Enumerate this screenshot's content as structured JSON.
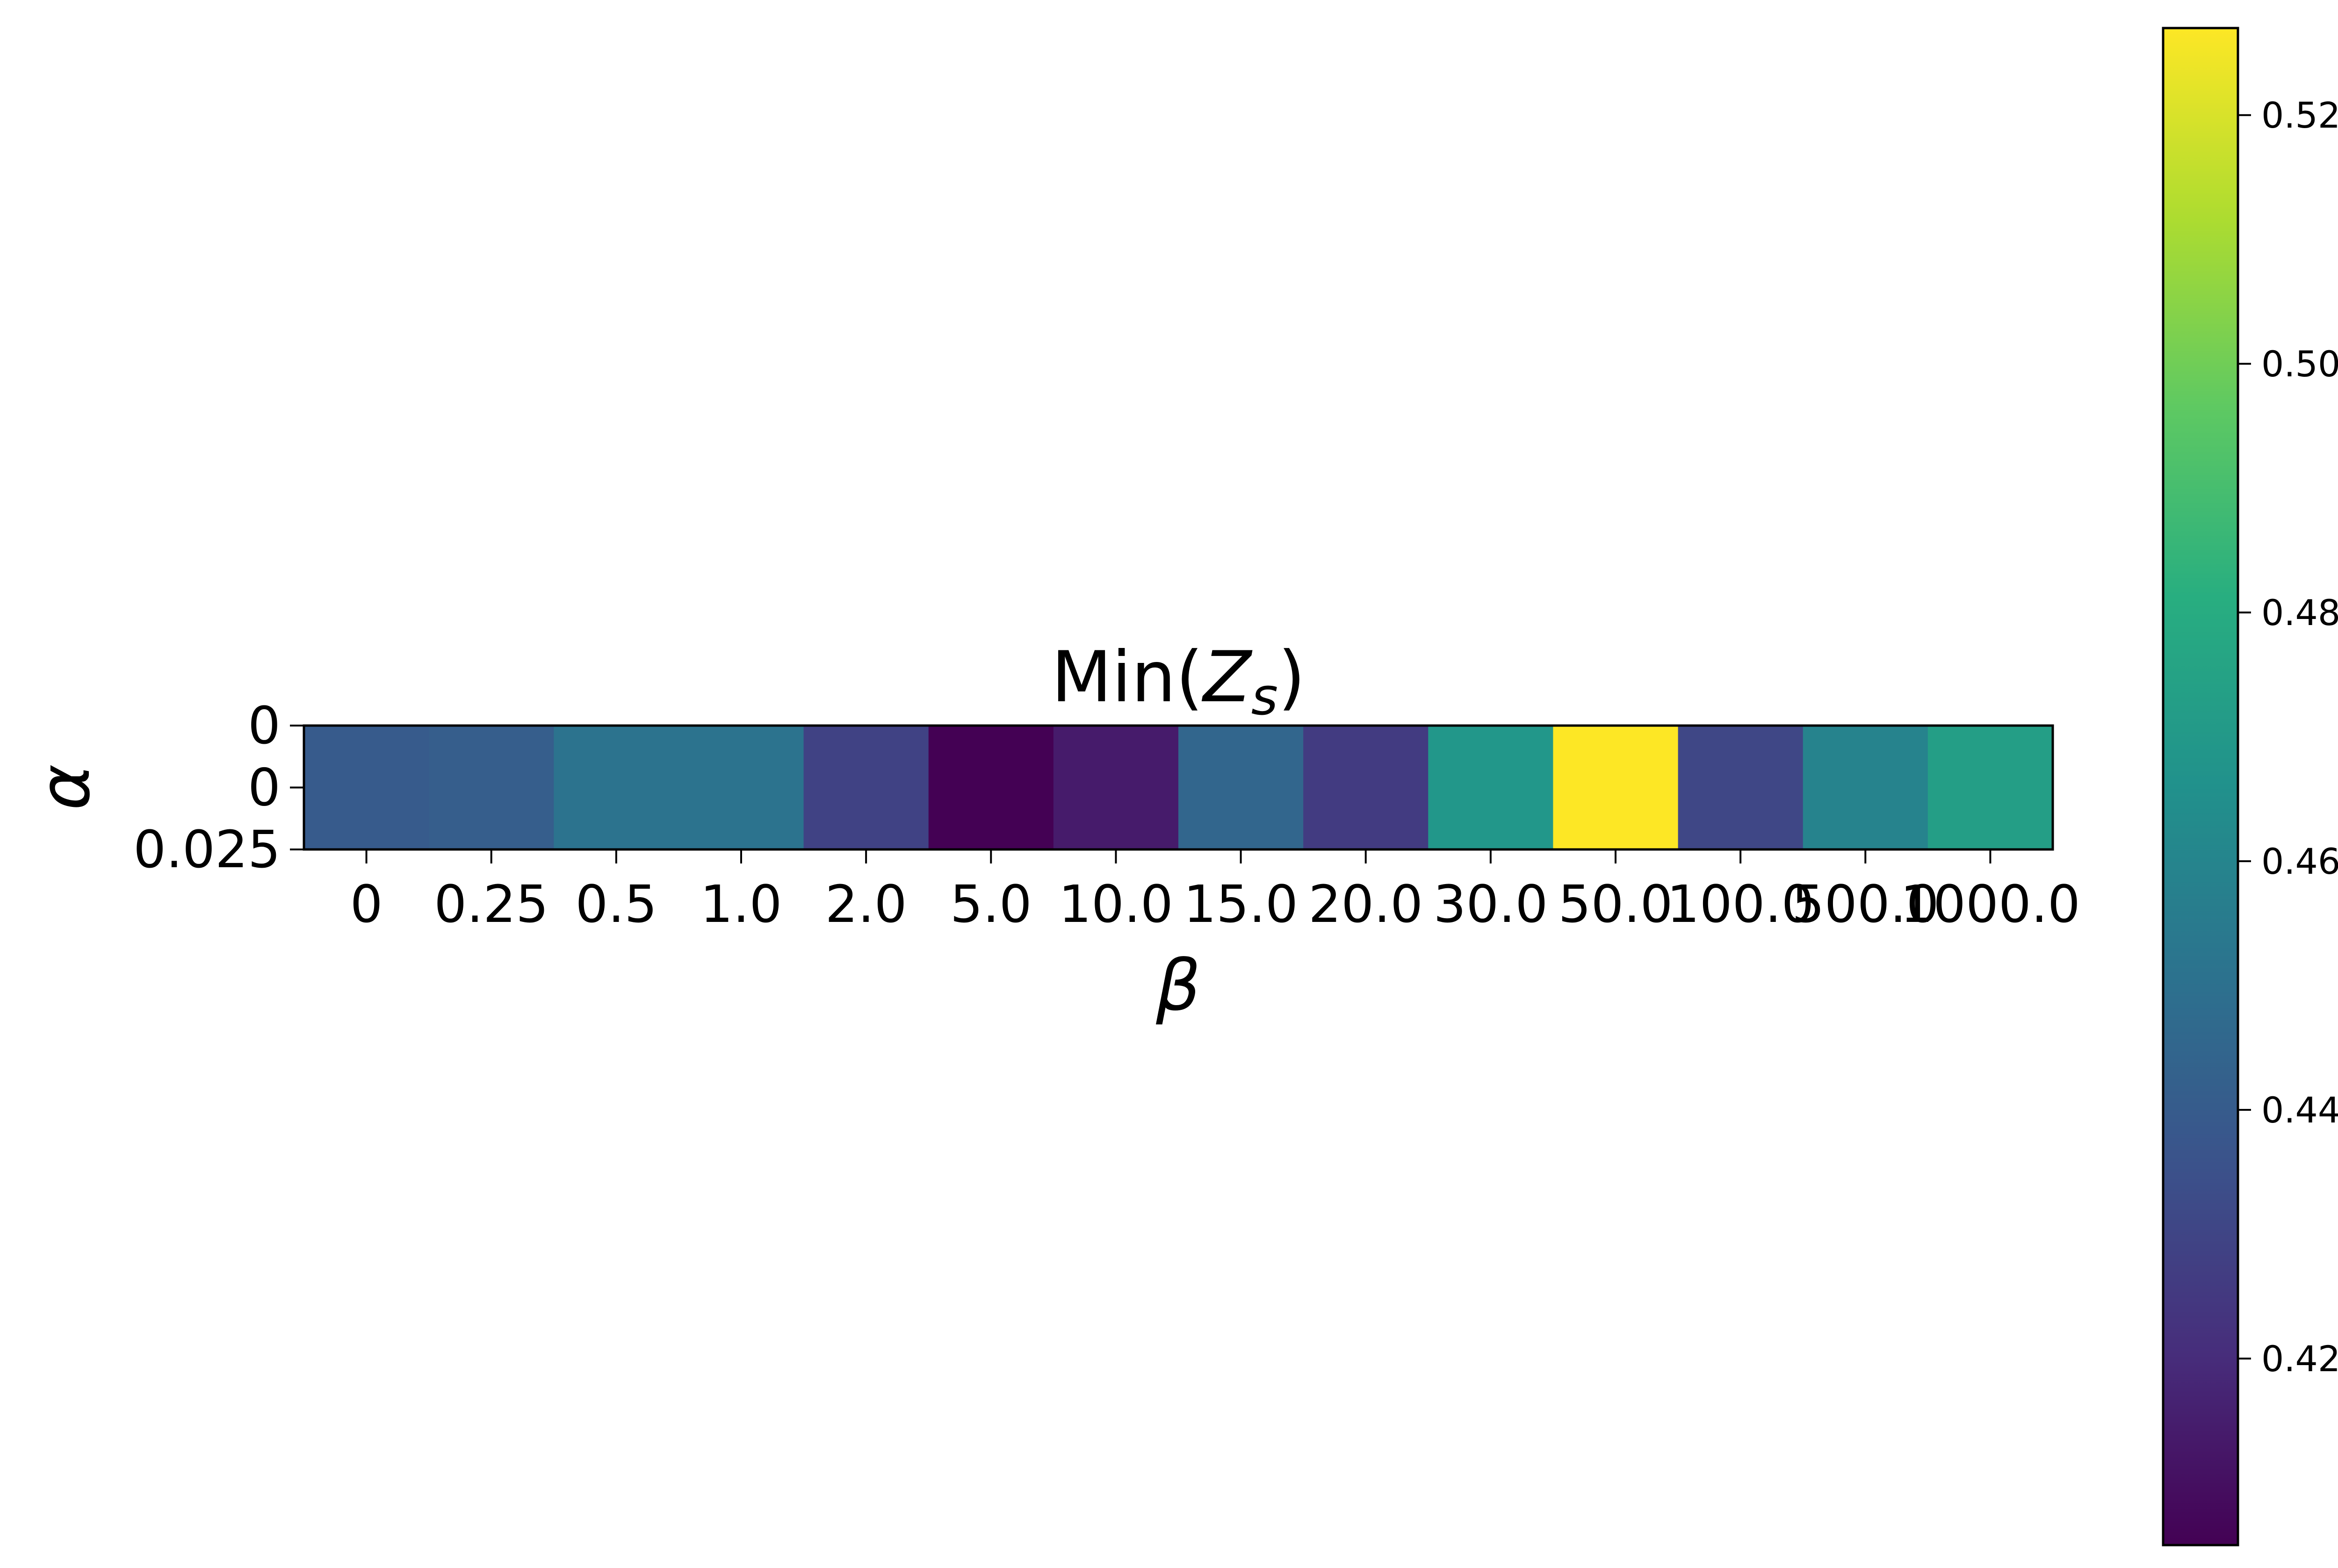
{
  "chart_data": {
    "type": "heatmap",
    "title": "Min(Z_s)",
    "xlabel": "β",
    "ylabel": "α",
    "x_tick_labels": [
      "0",
      "0.25",
      "0.5",
      "1.0",
      "2.0",
      "5.0",
      "10.0",
      "15.0",
      "20.0",
      "30.0",
      "50.0",
      "100.0",
      "500.0",
      "1000.0"
    ],
    "y_tick_labels": [
      "0",
      "0",
      "0.025"
    ],
    "values": [
      0.44,
      0.441,
      0.451,
      0.451,
      0.429,
      0.405,
      0.414,
      0.445,
      0.426,
      0.469,
      0.527,
      0.431,
      0.459,
      0.473
    ],
    "colormap": "viridis",
    "colorbar": {
      "range": [
        0.405,
        0.527
      ],
      "ticks": [
        0.42,
        0.44,
        0.46,
        0.48,
        0.5,
        0.52
      ],
      "tick_labels": [
        "0.42",
        "0.44",
        "0.46",
        "0.48",
        "0.50",
        "0.52"
      ]
    }
  }
}
